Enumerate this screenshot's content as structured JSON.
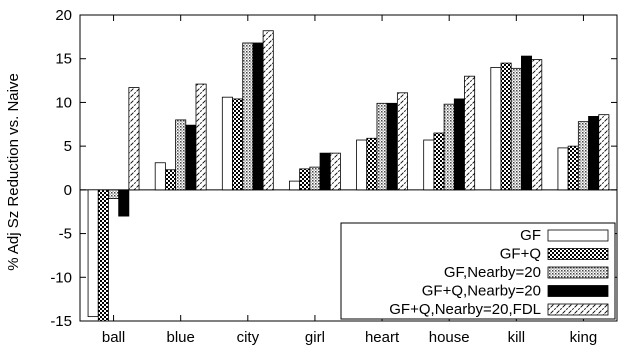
{
  "chart_data": {
    "type": "bar",
    "ylabel": "% Adj Sz Reduction vs. Naive",
    "xlabel": "",
    "ylim": [
      -15,
      20
    ],
    "yticks": [
      -15,
      -10,
      -5,
      0,
      5,
      10,
      15,
      20
    ],
    "categories": [
      "ball",
      "blue",
      "city",
      "girl",
      "heart",
      "house",
      "kill",
      "king"
    ],
    "series": [
      {
        "name": "GF",
        "pattern": "white",
        "values": [
          -14.5,
          3.1,
          10.6,
          1.0,
          5.7,
          5.7,
          14.0,
          4.8
        ]
      },
      {
        "name": "GF+Q",
        "pattern": "checker",
        "values": [
          -15.0,
          2.3,
          10.4,
          2.4,
          5.9,
          6.5,
          14.5,
          5.0
        ]
      },
      {
        "name": "GF,Nearby=20",
        "pattern": "dots",
        "values": [
          -1.0,
          8.0,
          16.8,
          2.6,
          9.9,
          9.8,
          13.9,
          7.8
        ]
      },
      {
        "name": "GF+Q,Nearby=20",
        "pattern": "black",
        "values": [
          -3.0,
          7.4,
          16.8,
          4.2,
          9.9,
          10.4,
          15.3,
          8.4
        ]
      },
      {
        "name": "GF+Q,Nearby=20,FDL",
        "pattern": "diagonal",
        "values": [
          11.7,
          12.1,
          18.2,
          4.2,
          11.1,
          13.0,
          14.9,
          8.6
        ]
      }
    ],
    "grid": false,
    "legend_position": "bottom-right"
  }
}
